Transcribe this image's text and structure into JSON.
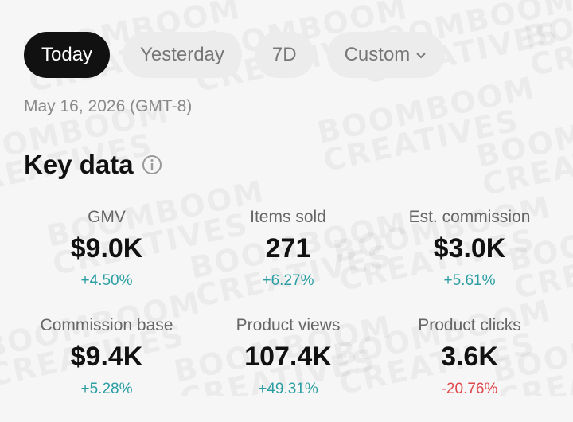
{
  "tabs": [
    {
      "label": "Today",
      "active": true
    },
    {
      "label": "Yesterday",
      "active": false
    },
    {
      "label": "7D",
      "active": false
    },
    {
      "label": "Custom",
      "active": false
    }
  ],
  "date": "May 16, 2026 (GMT-8)",
  "section_title": "Key data",
  "watermark": [
    "BOOMBOOM",
    "CREATIVES"
  ],
  "metrics": [
    {
      "label": "GMV",
      "value": "$9.0K",
      "change": "+4.50%",
      "color": "#2b9ea3"
    },
    {
      "label": "Items sold",
      "value": "271",
      "change": "+6.27%",
      "color": "#2b9ea3"
    },
    {
      "label": "Est. commission",
      "value": "$3.0K",
      "change": "+5.61%",
      "color": "#2b9ea3"
    },
    {
      "label": "Commission base",
      "value": "$9.4K",
      "change": "+5.28%",
      "color": "#2b9ea3"
    },
    {
      "label": "Product views",
      "value": "107.4K",
      "change": "+49.31%",
      "color": "#2b9ea3"
    },
    {
      "label": "Product clicks",
      "value": "3.6K",
      "change": "-20.76%",
      "color": "#e0474c"
    }
  ]
}
